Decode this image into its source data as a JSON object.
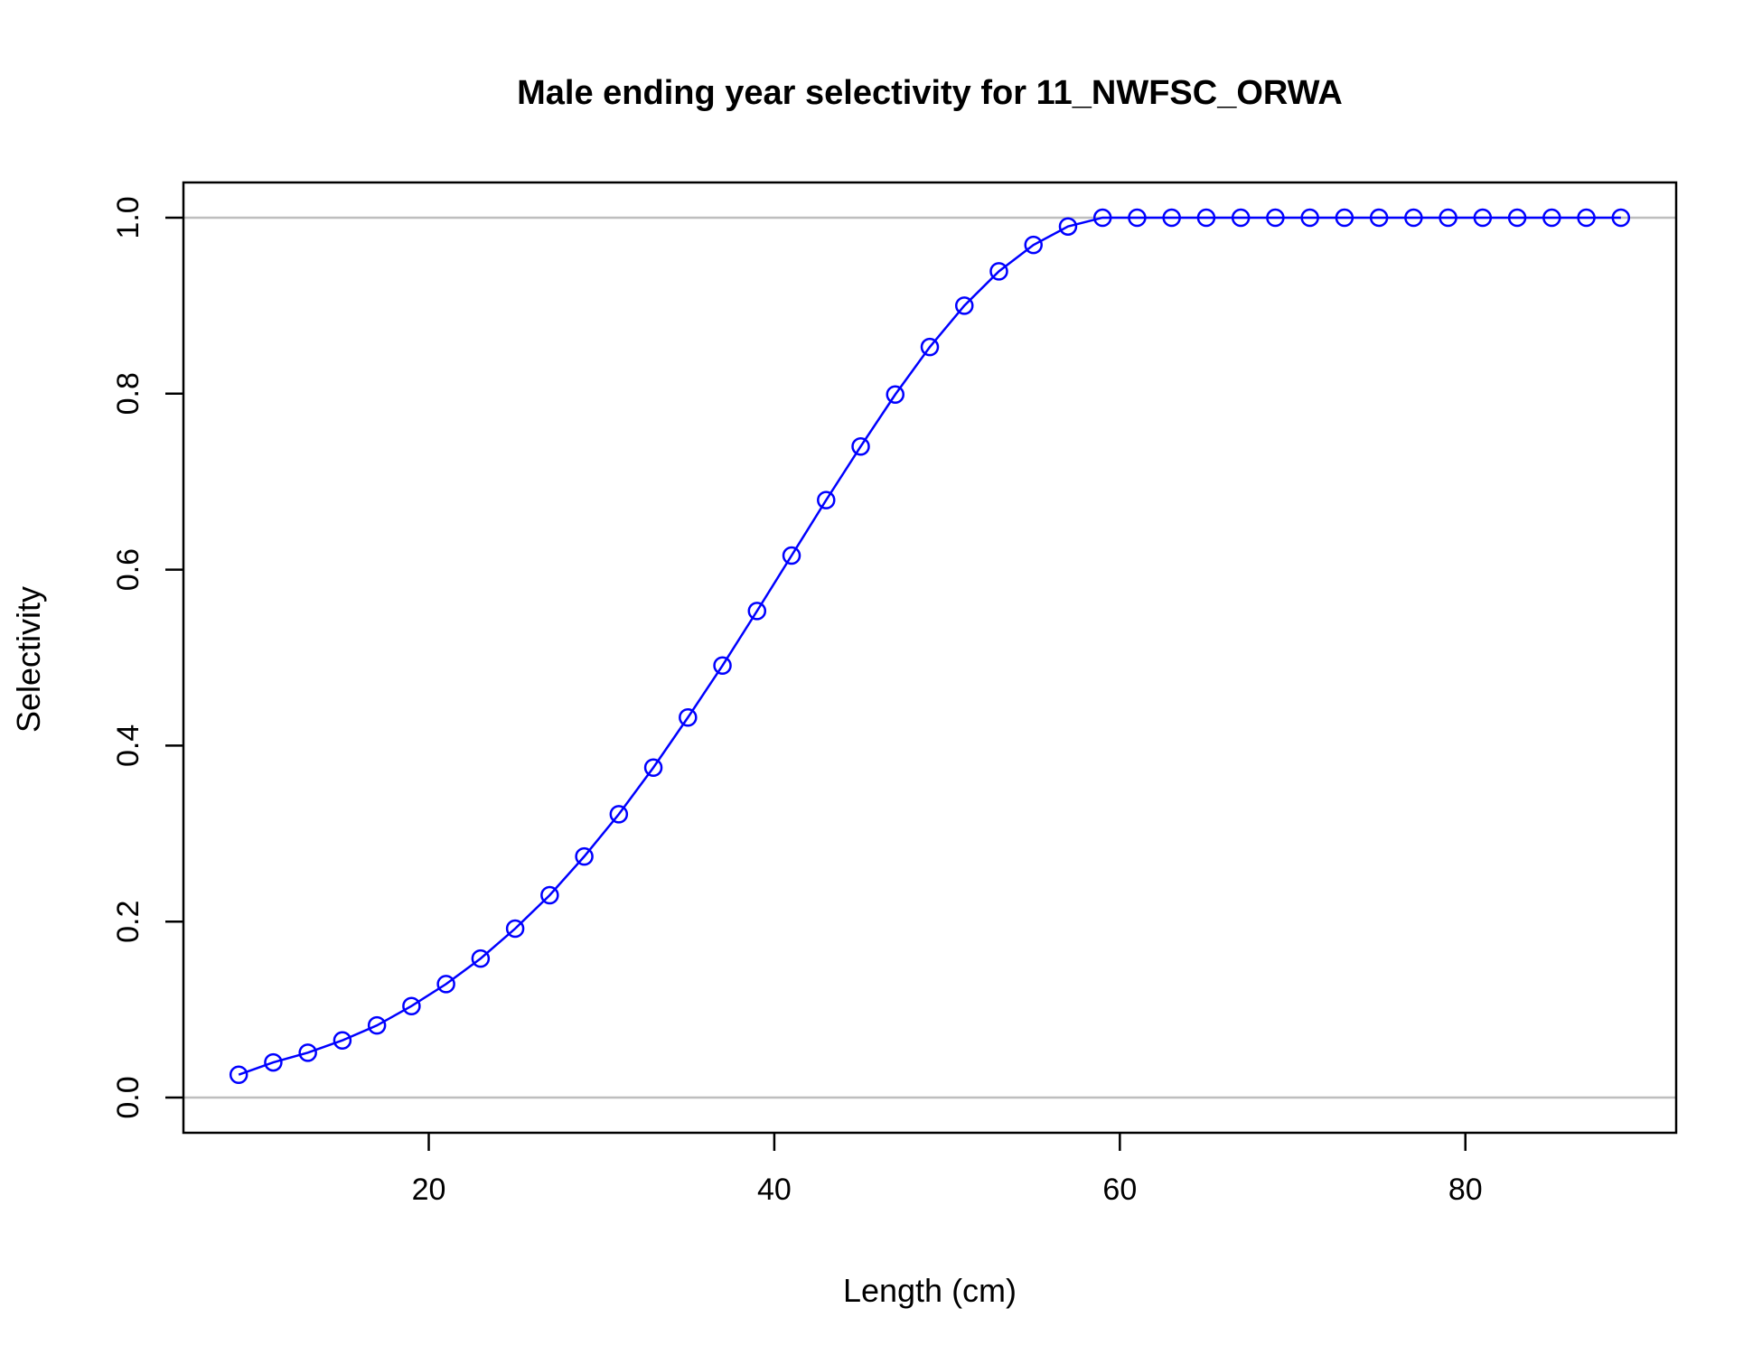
{
  "chart_data": {
    "type": "line",
    "title": "Male ending year selectivity for 11_NWFSC_ORWA",
    "xlabel": "Length (cm)",
    "ylabel": "Selectivity",
    "xlim": [
      5.8,
      92.2
    ],
    "ylim": [
      -0.04,
      1.04
    ],
    "xticks": [
      20,
      40,
      60,
      80
    ],
    "xtick_labels": [
      "20",
      "40",
      "60",
      "80"
    ],
    "yticks": [
      0.0,
      0.2,
      0.4,
      0.6,
      0.8,
      1.0
    ],
    "ytick_labels": [
      "0.0",
      "0.2",
      "0.4",
      "0.6",
      "0.8",
      "1.0"
    ],
    "reference_lines": [
      0.0,
      1.0
    ],
    "grid": false,
    "line_color": "#0000ff",
    "reference_line_color": "#bebebe",
    "marker": "open-circle",
    "series": [
      {
        "x": [
          9,
          11,
          13,
          15,
          17,
          19,
          21,
          23,
          25,
          27,
          29,
          31,
          33,
          35,
          37,
          39,
          41,
          43,
          45,
          47,
          49,
          51,
          53,
          55,
          57,
          59,
          61,
          63,
          65,
          67,
          69,
          71,
          73,
          75,
          77,
          79,
          81,
          83,
          85,
          87,
          89
        ],
        "y": [
          0.026,
          0.04,
          0.051,
          0.065,
          0.082,
          0.104,
          0.129,
          0.158,
          0.192,
          0.23,
          0.274,
          0.322,
          0.375,
          0.432,
          0.491,
          0.553,
          0.616,
          0.679,
          0.74,
          0.799,
          0.853,
          0.9,
          0.939,
          0.969,
          0.99,
          1.0,
          1.0,
          1.0,
          1.0,
          1.0,
          1.0,
          1.0,
          1.0,
          1.0,
          1.0,
          1.0,
          1.0,
          1.0,
          1.0,
          1.0,
          1.0
        ]
      }
    ]
  }
}
